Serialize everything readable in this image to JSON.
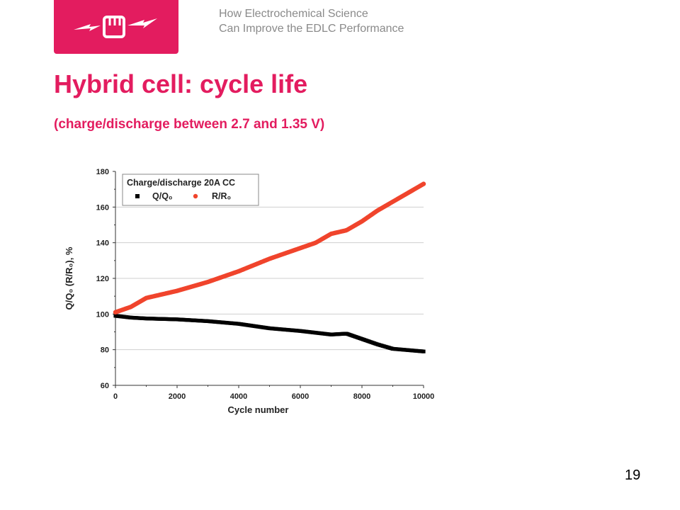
{
  "header": {
    "line1": "How Electrochemical Science",
    "line2": "Can Improve the EDLC Performance"
  },
  "logo": {
    "icon": "lightning-fist-icon",
    "color": "#e31c5f"
  },
  "slide": {
    "title": "Hybrid cell: cycle life",
    "subtitle": "(charge/discharge between 2.7 and 1.35 V)",
    "page_number": "19"
  },
  "colors": {
    "accent": "#e31c5f",
    "series_q": "#000000",
    "series_r": "#f0442c"
  },
  "chart_data": {
    "type": "scatter",
    "xlabel": "Cycle number",
    "ylabel": "Q/Q₀ (R/R₀), %",
    "xlim": [
      0,
      10000
    ],
    "ylim": [
      60,
      180
    ],
    "xticks": [
      0,
      2000,
      4000,
      6000,
      8000,
      10000
    ],
    "yticks": [
      60,
      80,
      100,
      120,
      140,
      160,
      180
    ],
    "grid_y": [
      80,
      100,
      120,
      140,
      160
    ],
    "legend": {
      "title": "Charge/discharge 20A CC",
      "position": "top-left"
    },
    "series": [
      {
        "name": "Q/Q₀",
        "color": "#000000",
        "marker": "square",
        "x": [
          0,
          500,
          1000,
          2000,
          3000,
          4000,
          5000,
          6000,
          6500,
          7000,
          7500,
          8000,
          8500,
          9000,
          10000
        ],
        "y": [
          99,
          98,
          97.5,
          97,
          96,
          94.5,
          92,
          90.5,
          89.5,
          88.5,
          89,
          86,
          83,
          80.5,
          79
        ]
      },
      {
        "name": "R/R₀",
        "color": "#f0442c",
        "marker": "circle",
        "x": [
          0,
          500,
          1000,
          2000,
          3000,
          4000,
          5000,
          6000,
          6500,
          7000,
          7500,
          8000,
          8500,
          9000,
          9500,
          10000
        ],
        "y": [
          101,
          104,
          109,
          113,
          118,
          124,
          131,
          137,
          140,
          145,
          147,
          152,
          158,
          163,
          168,
          173
        ]
      }
    ]
  }
}
